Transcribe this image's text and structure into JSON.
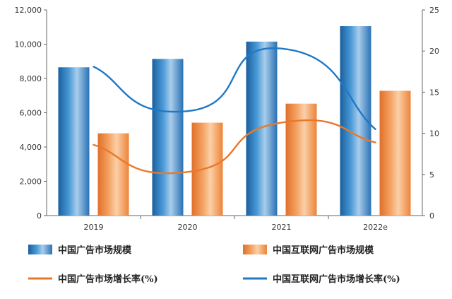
{
  "chart_data": {
    "type": "bar",
    "categories": [
      "2019",
      "2020",
      "2021",
      "2022e"
    ],
    "series": [
      {
        "name": "中国广告市场规模",
        "type": "bar",
        "axis": "left",
        "color": "#2f7fc1",
        "values": [
          8650,
          9140,
          10150,
          11050
        ]
      },
      {
        "name": "中国互联网广告市场规模",
        "type": "bar",
        "axis": "left",
        "color": "#f08a3e",
        "values": [
          4800,
          5420,
          6530,
          7280
        ]
      },
      {
        "name": "中国广告市场增长率(%)",
        "type": "line",
        "axis": "right",
        "color": "#e8792b",
        "values": [
          8.6,
          5.3,
          11.3,
          8.9
        ]
      },
      {
        "name": "中国互联网广告市场增长率(%)",
        "type": "line",
        "axis": "right",
        "color": "#1f78c8",
        "values": [
          18.1,
          12.7,
          20.3,
          10.5
        ]
      }
    ],
    "y_left": {
      "min": 0,
      "max": 12000,
      "ticks": [
        "0",
        "2,000",
        "4,000",
        "6,000",
        "8,000",
        "10,000",
        "12,000"
      ]
    },
    "y_right": {
      "min": 0,
      "max": 25,
      "ticks": [
        "0",
        "5",
        "10",
        "15",
        "20",
        "25"
      ]
    },
    "grid": false,
    "legend_position": "bottom"
  }
}
